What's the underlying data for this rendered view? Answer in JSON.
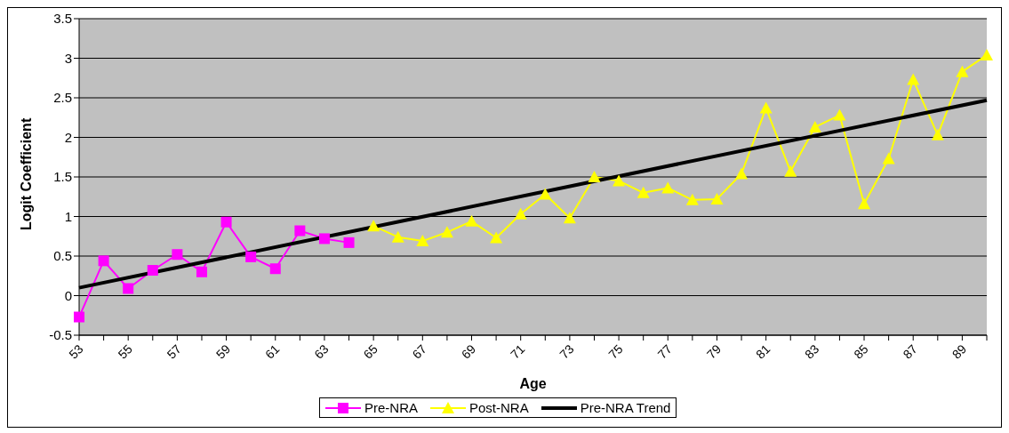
{
  "chart_data": {
    "type": "line",
    "xlabel": "Age",
    "ylabel": "Logit Coefficient",
    "categories": [
      "53",
      null,
      "55",
      null,
      "57",
      null,
      "59",
      null,
      "61",
      null,
      "63",
      null,
      "65",
      null,
      "67",
      null,
      "69",
      null,
      "71",
      null,
      "73",
      null,
      "75",
      null,
      "77",
      null,
      "79",
      null,
      "81",
      null,
      "83",
      null,
      "85",
      null,
      "87",
      null,
      "89",
      null
    ],
    "series": [
      {
        "name": "Pre-NRA",
        "color": "#ff00ff",
        "marker": "square",
        "values": [
          -0.27,
          0.44,
          0.09,
          0.32,
          0.52,
          0.3,
          0.93,
          0.49,
          0.34,
          0.82,
          0.72,
          0.67,
          null,
          null,
          null,
          null,
          null,
          null,
          null,
          null,
          null,
          null,
          null,
          null,
          null,
          null,
          null,
          null,
          null,
          null,
          null,
          null,
          null,
          null,
          null,
          null,
          null,
          null
        ]
      },
      {
        "name": "Post-NRA",
        "color": "#ffff00",
        "marker": "triangle",
        "values": [
          null,
          null,
          null,
          null,
          null,
          null,
          null,
          null,
          null,
          null,
          null,
          null,
          0.88,
          0.74,
          0.69,
          0.8,
          0.94,
          0.73,
          1.03,
          1.28,
          0.98,
          1.5,
          1.45,
          1.3,
          1.36,
          1.21,
          1.22,
          1.54,
          2.37,
          1.57,
          2.13,
          2.28,
          1.16,
          1.73,
          2.73,
          2.03,
          2.83,
          3.04
        ]
      },
      {
        "name": "Pre-NRA Trend",
        "color": "#000000",
        "marker": "none",
        "values": [
          0.1,
          null,
          null,
          null,
          null,
          null,
          null,
          null,
          null,
          null,
          null,
          null,
          null,
          null,
          null,
          null,
          null,
          null,
          null,
          null,
          null,
          null,
          null,
          null,
          null,
          null,
          null,
          null,
          null,
          null,
          null,
          null,
          null,
          null,
          null,
          null,
          null,
          2.47
        ]
      }
    ],
    "ylim": [
      -0.5,
      3.5
    ],
    "yticks": [
      -0.5,
      0,
      0.5,
      1,
      1.5,
      2,
      2.5,
      3,
      3.5
    ],
    "grid": "y",
    "legend": "bottom"
  }
}
